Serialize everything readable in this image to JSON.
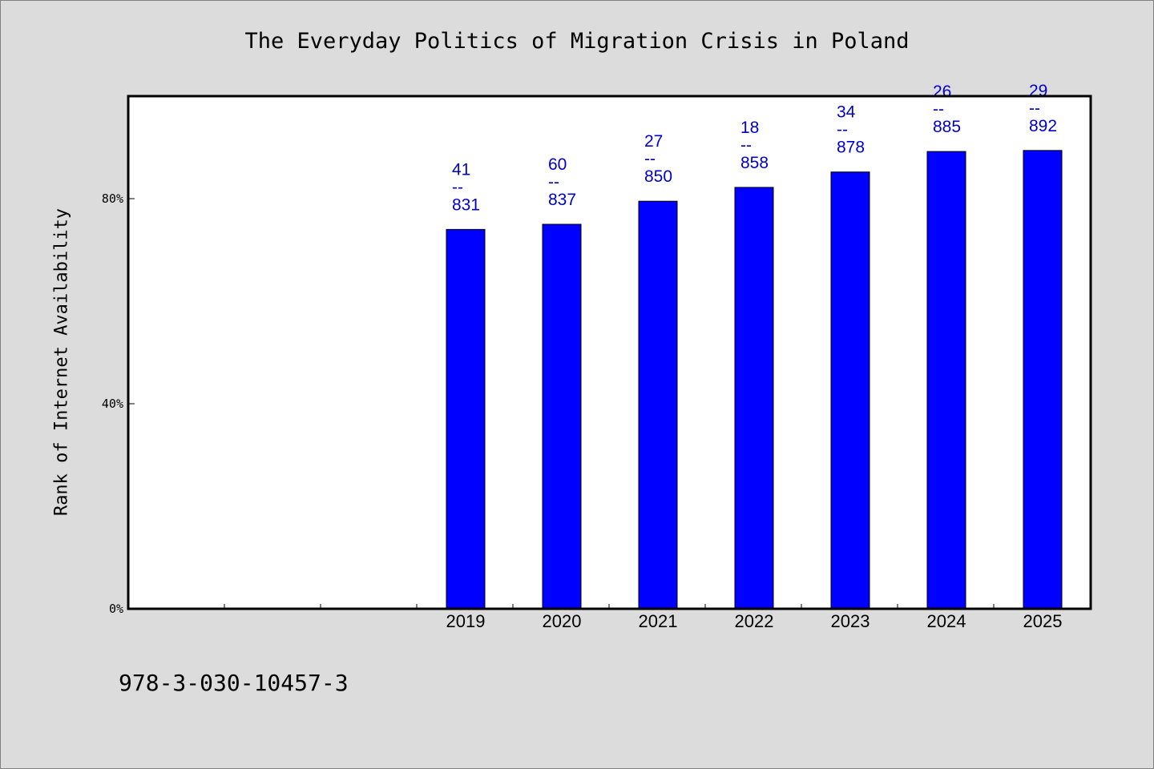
{
  "chart_data": {
    "type": "bar",
    "title": "The Everyday Politics of Migration Crisis in Poland",
    "xlabel": "",
    "ylabel": "Rank of Internet Availability",
    "ylim": [
      0,
      100
    ],
    "yticks": [
      "0%",
      "40%",
      "80%"
    ],
    "ytick_values": [
      0,
      40,
      80
    ],
    "categories": [
      "2019",
      "2020",
      "2021",
      "2022",
      "2023",
      "2024",
      "2025"
    ],
    "values": [
      74,
      75,
      79.5,
      82.2,
      85.2,
      89.2,
      89.4
    ],
    "labels_top": [
      "41",
      "60",
      "27",
      "18",
      "34",
      "26",
      "29"
    ],
    "labels_separator": "--",
    "labels_bottom": [
      "831",
      "837",
      "850",
      "858",
      "878",
      "885",
      "892"
    ],
    "bar_color": "#0000ff",
    "label_color": "#0000cc",
    "grid": false,
    "legend": "none"
  },
  "footer": {
    "isbn": "978-3-030-10457-3"
  }
}
